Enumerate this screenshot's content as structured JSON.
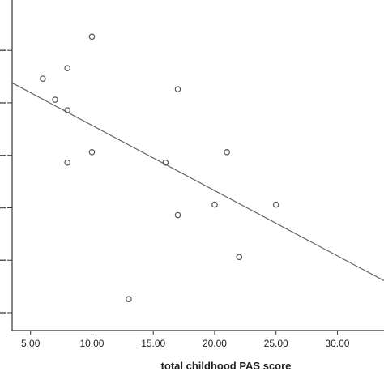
{
  "chart_data": {
    "type": "scatter",
    "xlabel": "total childhood PAS score",
    "ylabel": "",
    "x_ticks": [
      "5.00",
      "10.00",
      "15.00",
      "20.00",
      "25.00",
      "30.00"
    ],
    "y_ticks": [
      "",
      "",
      "",
      "",
      "",
      "",
      ""
    ],
    "xlim": [
      3.5,
      33.8
    ],
    "ylim": [
      0,
      6.3
    ],
    "grid": false,
    "points": [
      {
        "x": 6,
        "y": 4.8
      },
      {
        "x": 7,
        "y": 4.4
      },
      {
        "x": 8,
        "y": 5.0
      },
      {
        "x": 8,
        "y": 4.2
      },
      {
        "x": 8,
        "y": 3.2
      },
      {
        "x": 10,
        "y": 5.6
      },
      {
        "x": 10,
        "y": 3.4
      },
      {
        "x": 13,
        "y": 0.6
      },
      {
        "x": 16,
        "y": 3.2
      },
      {
        "x": 17,
        "y": 4.6
      },
      {
        "x": 17,
        "y": 2.2
      },
      {
        "x": 20,
        "y": 2.4
      },
      {
        "x": 21,
        "y": 3.4
      },
      {
        "x": 22,
        "y": 1.4
      },
      {
        "x": 25,
        "y": 2.4
      }
    ],
    "fit_line": {
      "x": [
        3.5,
        33.8
      ],
      "y": [
        4.72,
        0.95
      ]
    },
    "colors": {
      "points": "#555555",
      "line": "#666666",
      "axis": "#333333"
    }
  }
}
